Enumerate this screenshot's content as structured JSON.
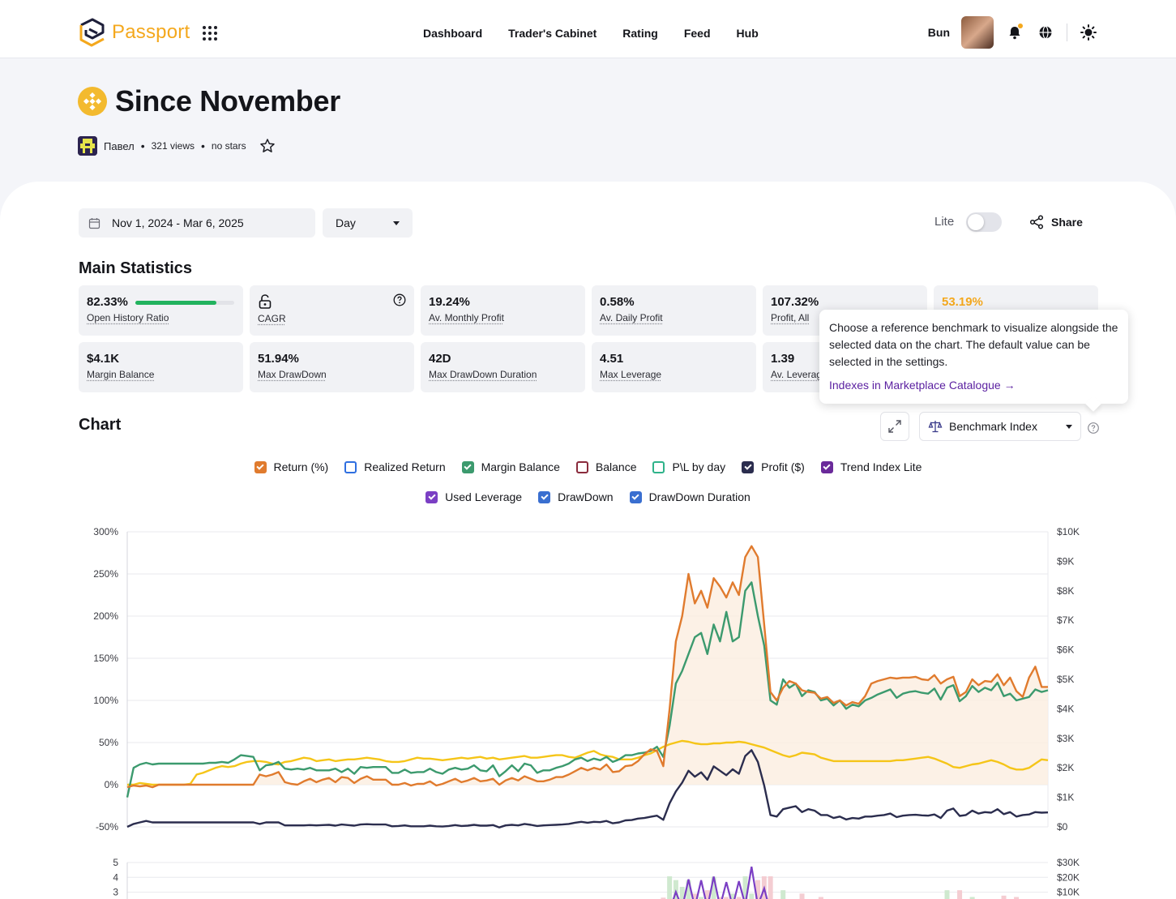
{
  "header": {
    "logo_text": "Passport",
    "nav": [
      "Dashboard",
      "Trader's Cabinet",
      "Rating",
      "Feed",
      "Hub"
    ],
    "user_name": "Bun"
  },
  "page": {
    "title": "Since November",
    "author": "Павел",
    "views": "321 views",
    "stars": "no stars"
  },
  "controls": {
    "date_range": "Nov 1, 2024 - Mar 6, 2025",
    "period": "Day",
    "lite_label": "Lite",
    "lite_on": false,
    "share_label": "Share"
  },
  "main_statistics": {
    "title": "Main Statistics",
    "cards": [
      {
        "value": "82.33%",
        "label": "Open History Ratio",
        "progress": 0.8233
      },
      {
        "value": "",
        "label": "CAGR"
      },
      {
        "value": "19.24%",
        "label": "Av. Monthly Profit"
      },
      {
        "value": "0.58%",
        "label": "Av. Daily Profit"
      },
      {
        "value": "107.32%",
        "label": "Profit, All"
      },
      {
        "value": "53.19%",
        "label": ""
      },
      {
        "value": "$4.1K",
        "label": "Margin Balance"
      },
      {
        "value": "51.94%",
        "label": "Max DrawDown"
      },
      {
        "value": "42D",
        "label": "Max DrawDown Duration"
      },
      {
        "value": "4.51",
        "label": "Max Leverage"
      },
      {
        "value": "1.39",
        "label": "Av. Leverag"
      }
    ]
  },
  "tooltip": {
    "text": "Choose a reference benchmark to visualize alongside the selected data on the chart. The default value can be selected in the settings.",
    "link": "Indexes in Marketplace Catalogue →"
  },
  "chart_section": {
    "title": "Chart",
    "benchmark_label": "Benchmark Index",
    "legend": [
      {
        "label": "Return (%)",
        "color": "#e07b2e",
        "checked": true
      },
      {
        "label": "Realized Return",
        "color": "#2f6fe0",
        "checked": false
      },
      {
        "label": "Margin Balance",
        "color": "#3c9a6e",
        "checked": true
      },
      {
        "label": "Balance",
        "color": "#8a2b3c",
        "checked": false
      },
      {
        "label": "P\\L by day",
        "color": "#2fb38a",
        "checked": false
      },
      {
        "label": "Profit ($)",
        "color": "#2b2d4e",
        "checked": true
      },
      {
        "label": "Trend Index Lite",
        "color": "#6a2a9a",
        "checked": true
      },
      {
        "label": "Used Leverage",
        "color": "#7b3fc4",
        "checked": true
      },
      {
        "label": "DrawDown",
        "color": "#3a6fd0",
        "checked": true
      },
      {
        "label": "DrawDown Duration",
        "color": "#3a6fd0",
        "checked": true
      }
    ]
  },
  "chart_data": {
    "type": "line",
    "y_left_ticks": [
      "300%",
      "250%",
      "200%",
      "150%",
      "100%",
      "50%",
      "0%",
      "-50%"
    ],
    "y_right_ticks": [
      "$10K",
      "$9K",
      "$8K",
      "$7K",
      "$6K",
      "$5K",
      "$4K",
      "$3K",
      "$2K",
      "$1K",
      "$0"
    ],
    "ylim_left": [
      -50,
      300
    ],
    "ylim_right": [
      0,
      10000
    ],
    "series": [
      {
        "name": "Return (%)",
        "color": "#e07b2e",
        "axis": "left",
        "values": [
          -3,
          -1,
          -2,
          -1,
          -3,
          0,
          0,
          0,
          0,
          0,
          0,
          0,
          0,
          0,
          0,
          0,
          0,
          0,
          0,
          0,
          0,
          12,
          10,
          12,
          15,
          3,
          1,
          0,
          4,
          7,
          3,
          6,
          8,
          3,
          9,
          8,
          2,
          7,
          10,
          6,
          6,
          6,
          0,
          0,
          2,
          -1,
          1,
          1,
          4,
          -1,
          1,
          4,
          7,
          3,
          5,
          8,
          4,
          5,
          7,
          0,
          5,
          8,
          5,
          10,
          7,
          4,
          4,
          6,
          9,
          9,
          12,
          16,
          20,
          17,
          20,
          18,
          24,
          15,
          16,
          22,
          23,
          28,
          36,
          42,
          40,
          22,
          90,
          170,
          200,
          250,
          215,
          230,
          210,
          245,
          235,
          222,
          240,
          225,
          270,
          283,
          270,
          190,
          110,
          100,
          115,
          123,
          120,
          112,
          110,
          109,
          102,
          104,
          97,
          100,
          94,
          98,
          96,
          105,
          120,
          123,
          125,
          127,
          126,
          127,
          127,
          128,
          125,
          124,
          130,
          120,
          125,
          128,
          105,
          110,
          125,
          118,
          123,
          122,
          131,
          118,
          127,
          111,
          104,
          127,
          140,
          116,
          116
        ]
      },
      {
        "name": "Margin Balance",
        "color": "#3c9a6e",
        "axis": "left",
        "values": [
          -15,
          20,
          24,
          26,
          24,
          25,
          25,
          25,
          25,
          25,
          25,
          25,
          25,
          26,
          26,
          27,
          26,
          30,
          35,
          34,
          33,
          17,
          23,
          24,
          27,
          19,
          18,
          19,
          18,
          20,
          17,
          17,
          17,
          19,
          15,
          19,
          13,
          21,
          20,
          21,
          21,
          21,
          14,
          14,
          18,
          14,
          15,
          15,
          19,
          15,
          13,
          18,
          20,
          18,
          19,
          23,
          17,
          16,
          23,
          10,
          16,
          23,
          16,
          25,
          23,
          14,
          17,
          17,
          20,
          22,
          25,
          30,
          32,
          28,
          31,
          29,
          33,
          27,
          30,
          35,
          35,
          37,
          38,
          40,
          45,
          33,
          70,
          120,
          135,
          155,
          175,
          180,
          155,
          190,
          170,
          205,
          170,
          175,
          230,
          240,
          200,
          165,
          100,
          95,
          125,
          115,
          120,
          105,
          112,
          110,
          100,
          102,
          94,
          100,
          90,
          95,
          93,
          100,
          103,
          107,
          110,
          113,
          103,
          108,
          110,
          111,
          109,
          108,
          114,
          101,
          115,
          118,
          99,
          105,
          117,
          110,
          115,
          112,
          121,
          105,
          108,
          100,
          102,
          104,
          113,
          110,
          112
        ]
      },
      {
        "name": "Profit ($)",
        "color": "#2b2d4e",
        "axis": "right",
        "values": [
          0,
          100,
          150,
          200,
          150,
          150,
          150,
          150,
          150,
          150,
          150,
          150,
          150,
          150,
          150,
          150,
          150,
          150,
          150,
          150,
          150,
          100,
          150,
          150,
          150,
          50,
          50,
          50,
          50,
          60,
          50,
          60,
          70,
          40,
          80,
          60,
          40,
          80,
          90,
          80,
          80,
          80,
          20,
          30,
          50,
          20,
          20,
          20,
          40,
          20,
          10,
          30,
          60,
          30,
          40,
          70,
          40,
          40,
          60,
          -20,
          50,
          70,
          50,
          100,
          70,
          30,
          50,
          60,
          70,
          80,
          100,
          140,
          170,
          140,
          170,
          160,
          200,
          120,
          150,
          220,
          230,
          280,
          300,
          340,
          380,
          240,
          800,
          1200,
          1500,
          1900,
          1700,
          1850,
          1600,
          2050,
          1900,
          1750,
          1950,
          1800,
          2400,
          2600,
          2200,
          1400,
          400,
          350,
          600,
          650,
          700,
          500,
          600,
          550,
          400,
          400,
          300,
          350,
          250,
          300,
          280,
          350,
          350,
          380,
          400,
          450,
          330,
          380,
          400,
          410,
          390,
          380,
          420,
          300,
          550,
          620,
          370,
          400,
          550,
          450,
          500,
          480,
          600,
          430,
          500,
          350,
          400,
          420,
          500,
          480,
          490
        ]
      },
      {
        "name": "Trend Index Lite",
        "color": "#f5c518",
        "axis": "left",
        "values": [
          0,
          0,
          2,
          1,
          0,
          0,
          0,
          0,
          0,
          0,
          1,
          12,
          14,
          17,
          20,
          22,
          21,
          22,
          25,
          27,
          28,
          28,
          27,
          25,
          24,
          27,
          28,
          30,
          32,
          31,
          28,
          29,
          30,
          28,
          29,
          30,
          30,
          31,
          32,
          31,
          30,
          28,
          27,
          27,
          28,
          30,
          32,
          31,
          31,
          30,
          29,
          30,
          31,
          32,
          31,
          32,
          33,
          31,
          32,
          30,
          31,
          32,
          33,
          34,
          32,
          32,
          33,
          34,
          35,
          35,
          33,
          32,
          35,
          38,
          40,
          36,
          34,
          33,
          30,
          30,
          30,
          32,
          35,
          37,
          41,
          45,
          48,
          50,
          52,
          51,
          49,
          48,
          48,
          49,
          49,
          50,
          50,
          51,
          50,
          48,
          46,
          44,
          41,
          38,
          35,
          33,
          35,
          38,
          37,
          36,
          32,
          30,
          28,
          28,
          28,
          28,
          28,
          28,
          28,
          28,
          28,
          28,
          29,
          29,
          30,
          31,
          32,
          33,
          31,
          28,
          25,
          21,
          20,
          22,
          24,
          25,
          27,
          29,
          27,
          24,
          20,
          18,
          18,
          20,
          25,
          30,
          29
        ]
      }
    ]
  }
}
